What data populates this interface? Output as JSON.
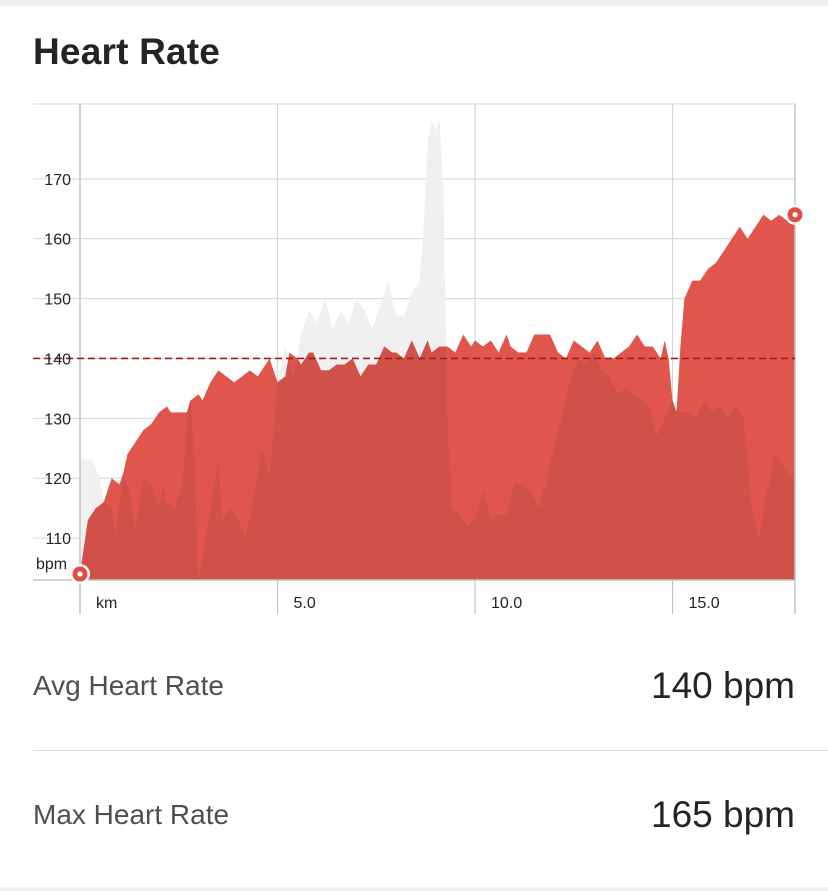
{
  "card": {
    "title": "Heart Rate",
    "stats": [
      {
        "label": "Avg Heart Rate",
        "value": "140 bpm"
      },
      {
        "label": "Max Heart Rate",
        "value": "165 bpm"
      }
    ]
  },
  "chart_data": {
    "type": "area",
    "title": "",
    "xlabel": "km",
    "ylabel": "bpm",
    "xlim": [
      0,
      18.1
    ],
    "ylim": [
      103,
      182.5
    ],
    "x_ticks": [
      5,
      10,
      15
    ],
    "x_tick_labels": [
      "5.0",
      "10.0",
      "15.0"
    ],
    "y_ticks": [
      110,
      120,
      130,
      140,
      150,
      160,
      170
    ],
    "y_tick_labels": [
      "110",
      "120",
      "130",
      "140",
      "150",
      "160",
      "170"
    ],
    "grid": true,
    "legend": "none",
    "colors": {
      "primary_fill": "#e0564c",
      "comparison_fill": "#f0f0f0",
      "overlap_fill": "#cf5147",
      "average_line": "#a11d18",
      "grid": "#d6d6d6",
      "axis": "#c4c4c4",
      "marker": "#df4f45"
    },
    "average_line": 140,
    "markers": [
      {
        "x": 0.0,
        "y": 104
      },
      {
        "x": 18.1,
        "y": 164
      }
    ],
    "series": [
      {
        "values": [
          [
            0.0,
            104
          ],
          [
            0.2,
            113
          ],
          [
            0.4,
            115
          ],
          [
            0.6,
            116
          ],
          [
            0.8,
            120
          ],
          [
            1.0,
            119
          ],
          [
            1.1,
            121
          ],
          [
            1.2,
            124
          ],
          [
            1.4,
            126
          ],
          [
            1.5,
            127
          ],
          [
            1.6,
            128
          ],
          [
            1.8,
            129
          ],
          [
            1.9,
            130
          ],
          [
            2.0,
            131
          ],
          [
            2.2,
            132
          ],
          [
            2.3,
            131
          ],
          [
            2.5,
            131
          ],
          [
            2.7,
            131
          ],
          [
            2.8,
            133
          ],
          [
            3.0,
            134
          ],
          [
            3.1,
            133
          ],
          [
            3.3,
            136
          ],
          [
            3.5,
            138
          ],
          [
            3.7,
            137
          ],
          [
            3.9,
            136
          ],
          [
            4.1,
            137
          ],
          [
            4.3,
            138
          ],
          [
            4.5,
            137
          ],
          [
            4.7,
            139
          ],
          [
            4.8,
            140
          ],
          [
            5.0,
            136
          ],
          [
            5.2,
            137
          ],
          [
            5.3,
            141
          ],
          [
            5.5,
            140
          ],
          [
            5.6,
            139
          ],
          [
            5.8,
            141
          ],
          [
            5.9,
            141
          ],
          [
            6.1,
            138
          ],
          [
            6.3,
            138
          ],
          [
            6.5,
            139
          ],
          [
            6.7,
            139
          ],
          [
            6.9,
            140
          ],
          [
            7.1,
            137
          ],
          [
            7.3,
            139
          ],
          [
            7.5,
            139
          ],
          [
            7.7,
            142
          ],
          [
            7.9,
            141
          ],
          [
            8.0,
            141
          ],
          [
            8.2,
            140
          ],
          [
            8.4,
            143
          ],
          [
            8.6,
            140
          ],
          [
            8.8,
            143
          ],
          [
            8.9,
            141
          ],
          [
            9.1,
            142
          ],
          [
            9.3,
            142
          ],
          [
            9.5,
            141
          ],
          [
            9.7,
            144
          ],
          [
            9.9,
            142
          ],
          [
            10.0,
            143
          ],
          [
            10.2,
            142
          ],
          [
            10.4,
            143
          ],
          [
            10.6,
            141
          ],
          [
            10.8,
            144
          ],
          [
            10.9,
            142
          ],
          [
            11.1,
            141
          ],
          [
            11.3,
            141
          ],
          [
            11.5,
            144
          ],
          [
            11.7,
            144
          ],
          [
            11.9,
            144
          ],
          [
            12.1,
            141
          ],
          [
            12.3,
            140
          ],
          [
            12.5,
            143
          ],
          [
            12.7,
            142
          ],
          [
            12.9,
            141
          ],
          [
            13.1,
            143
          ],
          [
            13.3,
            140
          ],
          [
            13.5,
            140
          ],
          [
            13.7,
            141
          ],
          [
            13.9,
            142
          ],
          [
            14.1,
            144
          ],
          [
            14.3,
            142
          ],
          [
            14.5,
            142
          ],
          [
            14.7,
            140
          ],
          [
            14.8,
            143
          ],
          [
            14.9,
            140
          ],
          [
            15.0,
            133
          ],
          [
            15.1,
            131
          ],
          [
            15.2,
            142
          ],
          [
            15.3,
            150
          ],
          [
            15.5,
            153
          ],
          [
            15.7,
            153
          ],
          [
            15.9,
            155
          ],
          [
            16.1,
            156
          ],
          [
            16.3,
            158
          ],
          [
            16.5,
            160
          ],
          [
            16.7,
            162
          ],
          [
            16.9,
            160
          ],
          [
            17.1,
            162
          ],
          [
            17.3,
            164
          ],
          [
            17.5,
            163
          ],
          [
            17.7,
            164
          ],
          [
            17.9,
            163
          ],
          [
            18.1,
            164
          ]
        ]
      },
      {
        "values": [
          [
            0.0,
            124
          ],
          [
            0.1,
            123
          ],
          [
            0.3,
            123
          ],
          [
            0.5,
            120
          ],
          [
            0.6,
            116
          ],
          [
            0.8,
            115
          ],
          [
            0.9,
            110
          ],
          [
            1.0,
            116
          ],
          [
            1.1,
            120
          ],
          [
            1.2,
            119
          ],
          [
            1.4,
            112
          ],
          [
            1.6,
            120
          ],
          [
            1.8,
            119
          ],
          [
            2.0,
            115
          ],
          [
            2.1,
            119
          ],
          [
            2.2,
            116
          ],
          [
            2.4,
            115
          ],
          [
            2.6,
            119
          ],
          [
            2.7,
            130
          ],
          [
            2.8,
            134
          ],
          [
            2.9,
            121
          ],
          [
            3.0,
            103
          ],
          [
            3.2,
            110
          ],
          [
            3.4,
            119
          ],
          [
            3.5,
            123
          ],
          [
            3.6,
            113
          ],
          [
            3.8,
            115
          ],
          [
            4.0,
            113
          ],
          [
            4.2,
            110
          ],
          [
            4.4,
            117
          ],
          [
            4.6,
            125
          ],
          [
            4.8,
            120
          ],
          [
            5.0,
            136
          ],
          [
            5.2,
            142
          ],
          [
            5.4,
            137
          ],
          [
            5.6,
            144
          ],
          [
            5.8,
            148
          ],
          [
            6.0,
            146
          ],
          [
            6.2,
            150
          ],
          [
            6.4,
            145
          ],
          [
            6.6,
            148
          ],
          [
            6.8,
            146
          ],
          [
            7.0,
            150
          ],
          [
            7.2,
            148
          ],
          [
            7.4,
            145
          ],
          [
            7.6,
            149
          ],
          [
            7.8,
            153
          ],
          [
            8.0,
            147
          ],
          [
            8.2,
            147
          ],
          [
            8.4,
            151
          ],
          [
            8.6,
            153
          ],
          [
            8.7,
            162
          ],
          [
            8.8,
            176
          ],
          [
            8.9,
            180
          ],
          [
            9.0,
            178
          ],
          [
            9.1,
            180
          ],
          [
            9.2,
            168
          ],
          [
            9.3,
            130
          ],
          [
            9.4,
            115
          ],
          [
            9.6,
            114
          ],
          [
            9.8,
            112
          ],
          [
            10.0,
            113
          ],
          [
            10.2,
            118
          ],
          [
            10.4,
            113
          ],
          [
            10.6,
            114
          ],
          [
            10.8,
            114
          ],
          [
            11.0,
            119
          ],
          [
            11.2,
            119
          ],
          [
            11.4,
            118
          ],
          [
            11.6,
            115
          ],
          [
            11.8,
            119
          ],
          [
            12.0,
            125
          ],
          [
            12.2,
            130
          ],
          [
            12.4,
            136
          ],
          [
            12.6,
            140
          ],
          [
            12.8,
            139
          ],
          [
            13.0,
            141
          ],
          [
            13.2,
            138
          ],
          [
            13.4,
            137
          ],
          [
            13.6,
            134
          ],
          [
            13.8,
            135
          ],
          [
            14.0,
            134
          ],
          [
            14.2,
            133
          ],
          [
            14.4,
            132
          ],
          [
            14.6,
            127
          ],
          [
            14.8,
            130
          ],
          [
            15.0,
            133
          ],
          [
            15.2,
            131
          ],
          [
            15.4,
            131
          ],
          [
            15.6,
            130
          ],
          [
            15.8,
            133
          ],
          [
            16.0,
            131
          ],
          [
            16.2,
            132
          ],
          [
            16.4,
            130
          ],
          [
            16.6,
            132
          ],
          [
            16.8,
            130
          ],
          [
            17.0,
            115
          ],
          [
            17.2,
            110
          ],
          [
            17.4,
            118
          ],
          [
            17.6,
            124
          ],
          [
            17.8,
            122
          ],
          [
            18.0,
            120
          ],
          [
            18.1,
            120
          ]
        ]
      }
    ]
  }
}
